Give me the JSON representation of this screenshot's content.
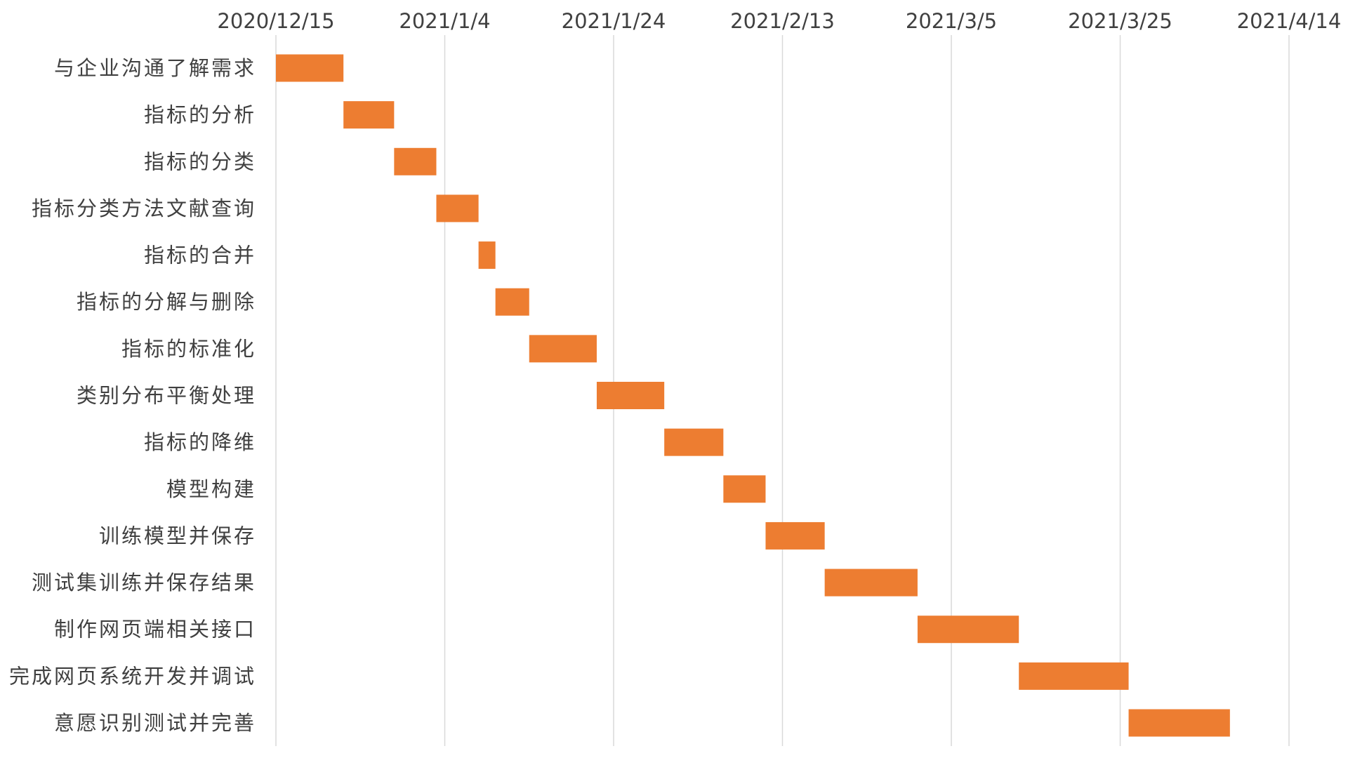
{
  "chart_data": {
    "type": "bar",
    "orientation": "horizontal-gantt",
    "title": "",
    "xlabel": "",
    "ylabel": "",
    "x_axis_position": "top",
    "x_ticks": [
      "2020/12/15",
      "2021/1/4",
      "2021/1/24",
      "2021/2/13",
      "2021/3/5",
      "2021/3/25",
      "2021/4/14"
    ],
    "xlim": [
      "2020-12-15",
      "2021-04-14"
    ],
    "grid": true,
    "legend": "none",
    "bar_color": "#ED7D31",
    "categories": [
      "与企业沟通了解需求",
      "指标的分析",
      "指标的分类",
      "指标分类方法文献查询",
      "指标的合并",
      "指标的分解与删除",
      "指标的标准化",
      "类别分布平衡处理",
      "指标的降维",
      "模型构建",
      "训练模型并保存",
      "测试集训练并保存结果",
      "制作网页端相关接口",
      "完成网页系统开发并调试",
      "意愿识别测试并完善"
    ],
    "start": [
      "2020-12-15",
      "2020-12-23",
      "2020-12-29",
      "2021-01-03",
      "2021-01-08",
      "2021-01-10",
      "2021-01-14",
      "2021-01-22",
      "2021-01-30",
      "2021-02-06",
      "2021-02-11",
      "2021-02-18",
      "2021-03-01",
      "2021-03-13",
      "2021-03-26"
    ],
    "end": [
      "2020-12-23",
      "2020-12-29",
      "2021-01-03",
      "2021-01-08",
      "2021-01-10",
      "2021-01-14",
      "2021-01-22",
      "2021-01-30",
      "2021-02-06",
      "2021-02-11",
      "2021-02-18",
      "2021-03-01",
      "2021-03-13",
      "2021-03-26",
      "2021-04-07"
    ]
  }
}
